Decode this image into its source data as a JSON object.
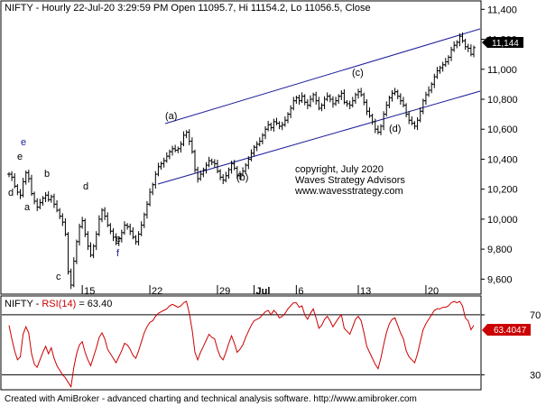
{
  "price_header": {
    "symbol": "NIFTY",
    "text": " - Hourly 22-Jul-20 3:29:59 PM Open 11095.7, Hi 11154.2, Lo 11056.5, Close"
  },
  "rsi_header": {
    "symbol": "NIFTY",
    "sep": " - ",
    "indicator": "RSI(14)",
    "value_text": " = 63.40"
  },
  "watermark": {
    "line1": "copyright, July 2020",
    "line2": "Waves Strategy Advisors",
    "line3": "www.wavesstrategy.com"
  },
  "footer": "Created with AmiBroker - advanced charting and technical analysis software. http://www.amibroker.com",
  "colors": {
    "price_bars": "#000000",
    "channel": "#1a1a9a",
    "rsi_line": "#cc0000",
    "rsi_badge": "#cc0000",
    "last_price_badge": "#000000",
    "wave_label_blue": "#1a1a9a"
  },
  "chart_data": [
    {
      "type": "ohlc",
      "ylim": [
        9500,
        11450
      ],
      "y_ticks": [
        9600,
        9800,
        10000,
        10200,
        10400,
        10600,
        10800,
        11000,
        11200,
        11400
      ],
      "y_tick_labels": [
        "9,600",
        "9,800",
        "10,000",
        "10,200",
        "10,400",
        "10,600",
        "10,800",
        "11,000",
        "11,200",
        "11,400"
      ],
      "x_ticks": [
        "15",
        "22",
        "29",
        "Jul",
        "6",
        "13",
        "20"
      ],
      "last_price_label": "11,144",
      "closes": [
        10300,
        10280,
        10220,
        10180,
        10160,
        10250,
        10310,
        10270,
        10170,
        10120,
        10080,
        10110,
        10140,
        10160,
        10130,
        10150,
        10100,
        10060,
        10020,
        9980,
        9900,
        9650,
        9560,
        9720,
        9850,
        9950,
        9990,
        9900,
        9820,
        9760,
        9820,
        9900,
        10000,
        10060,
        10020,
        9960,
        9920,
        9880,
        9840,
        9870,
        9910,
        9960,
        9950,
        9920,
        9880,
        9850,
        9900,
        9960,
        10030,
        10100,
        10180,
        10230,
        10300,
        10350,
        10370,
        10390,
        10420,
        10450,
        10470,
        10460,
        10470,
        10500,
        10560,
        10580,
        10520,
        10450,
        10330,
        10270,
        10300,
        10330,
        10360,
        10390,
        10380,
        10370,
        10320,
        10280,
        10260,
        10290,
        10330,
        10370,
        10340,
        10290,
        10300,
        10320,
        10360,
        10400,
        10440,
        10480,
        10500,
        10520,
        10560,
        10600,
        10630,
        10610,
        10650,
        10640,
        10620,
        10630,
        10660,
        10700,
        10740,
        10790,
        10810,
        10790,
        10820,
        10780,
        10760,
        10800,
        10830,
        10790,
        10740,
        10760,
        10800,
        10820,
        10800,
        10770,
        10790,
        10820,
        10840,
        10780,
        10770,
        10760,
        10790,
        10830,
        10850,
        10830,
        10780,
        10720,
        10690,
        10650,
        10600,
        10580,
        10620,
        10700,
        10760,
        10810,
        10840,
        10850,
        10820,
        10790,
        10760,
        10700,
        10660,
        10640,
        10620,
        10660,
        10720,
        10790,
        10830,
        10860,
        10900,
        10950,
        10990,
        11010,
        11030,
        11050,
        11080,
        11130,
        11160,
        11180,
        11220,
        11190,
        11150,
        11140,
        11100,
        11144
      ],
      "wave_labels": [
        "e",
        "e",
        "d",
        "b",
        "a",
        "d",
        "c",
        "e",
        "f",
        "(a)",
        "(b)",
        "(c)",
        "(d)"
      ]
    },
    {
      "type": "line",
      "name": "RSI(14)",
      "ylim": [
        20,
        82
      ],
      "y_ticks": [
        30,
        70
      ],
      "y_tick_labels": [
        "30",
        "70"
      ],
      "last_value_label": "63.4047",
      "values": [
        63,
        54,
        46,
        40,
        42,
        57,
        62,
        58,
        44,
        37,
        35,
        40,
        45,
        49,
        44,
        48,
        41,
        36,
        33,
        30,
        28,
        25,
        22,
        35,
        44,
        50,
        52,
        45,
        40,
        36,
        42,
        48,
        55,
        58,
        54,
        47,
        44,
        41,
        38,
        42,
        46,
        51,
        50,
        47,
        43,
        41,
        46,
        52,
        58,
        62,
        65,
        66,
        69,
        71,
        72,
        73,
        74,
        76,
        77,
        76,
        75,
        76,
        78,
        79,
        71,
        60,
        45,
        40,
        45,
        49,
        53,
        57,
        55,
        54,
        47,
        42,
        40,
        45,
        51,
        56,
        51,
        45,
        47,
        50,
        55,
        59,
        63,
        66,
        67,
        68,
        70,
        72,
        73,
        70,
        73,
        71,
        68,
        69,
        71,
        74,
        76,
        78,
        78,
        75,
        76,
        70,
        67,
        71,
        74,
        68,
        61,
        63,
        67,
        69,
        66,
        62,
        65,
        68,
        70,
        61,
        59,
        57,
        62,
        67,
        69,
        66,
        58,
        49,
        45,
        41,
        37,
        34,
        41,
        50,
        58,
        64,
        67,
        68,
        63,
        58,
        54,
        46,
        42,
        40,
        38,
        44,
        52,
        60,
        64,
        67,
        70,
        73,
        74,
        74,
        75,
        75,
        76,
        78,
        79,
        78,
        79,
        76,
        68,
        66,
        60,
        63
      ]
    }
  ]
}
